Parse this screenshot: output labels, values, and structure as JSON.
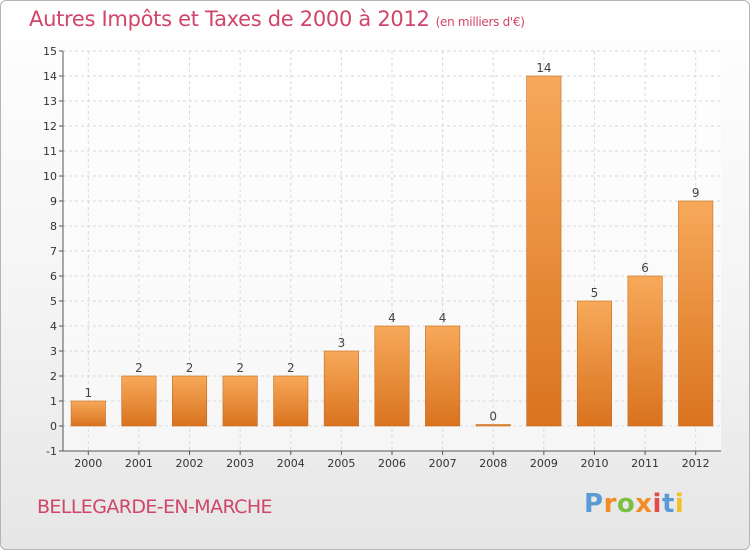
{
  "header": {
    "title": "Autres Impôts et Taxes de 2000 à 2012",
    "unit": "(en milliers d'€)"
  },
  "footer": {
    "commune": "BELLEGARDE-EN-MARCHE",
    "logo_text": "Proxiti",
    "logo_colors": [
      "#5b9bd5",
      "#f28c28",
      "#7bc043",
      "#f28c28",
      "#e64b4b",
      "#5b9bd5",
      "#f2c028"
    ]
  },
  "colors": {
    "title": "#d0456a",
    "bar_light": "#f7a95a",
    "bar_dark": "#d9731f",
    "grid": "#d8d8d8"
  },
  "chart_data": {
    "type": "bar",
    "title": "Autres Impôts et Taxes de 2000 à 2012",
    "xlabel": "",
    "ylabel": "",
    "ylim": [
      -1,
      15
    ],
    "yticks": [
      -1,
      0,
      1,
      2,
      3,
      4,
      5,
      6,
      7,
      8,
      9,
      10,
      11,
      12,
      13,
      14,
      15
    ],
    "grid": true,
    "categories": [
      "2000",
      "2001",
      "2002",
      "2003",
      "2004",
      "2005",
      "2006",
      "2007",
      "2008",
      "2009",
      "2010",
      "2011",
      "2012"
    ],
    "values": [
      1,
      2,
      2,
      2,
      2,
      3,
      4,
      4,
      0,
      14,
      5,
      6,
      9
    ]
  }
}
